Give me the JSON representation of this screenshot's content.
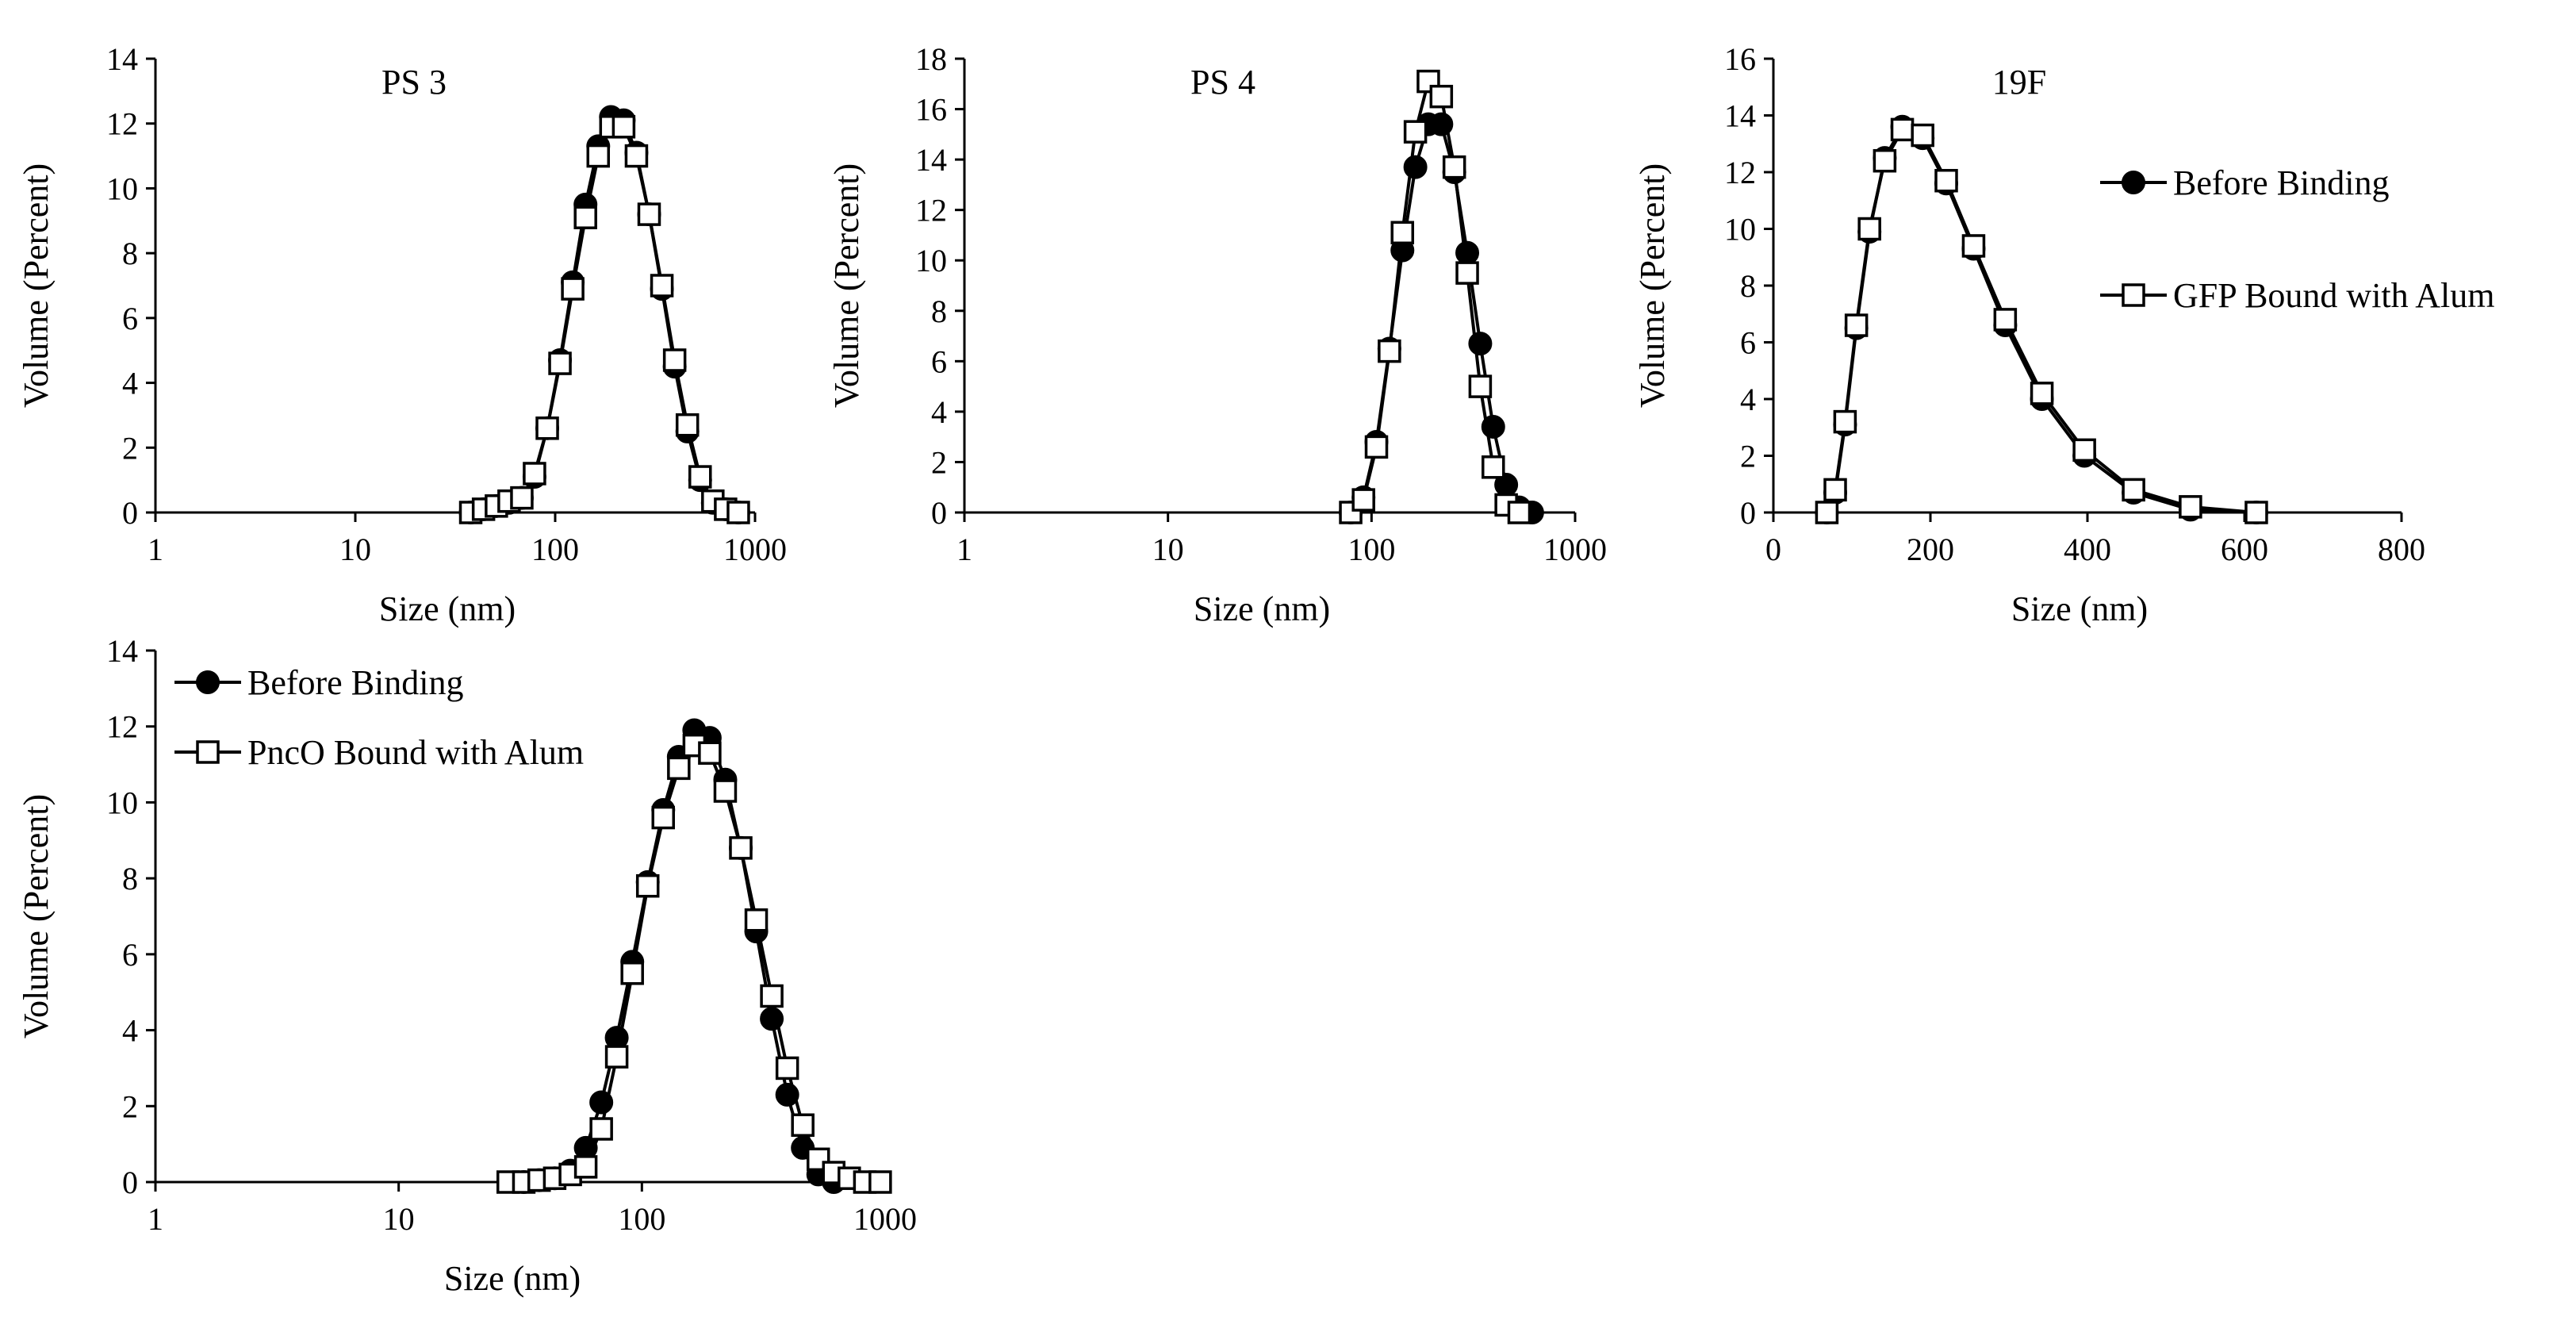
{
  "chart_data": [
    {
      "id": "ps3",
      "type": "line",
      "title": "PS 3",
      "xlabel": "Size (nm)",
      "ylabel": "Volume (Percent)",
      "xscale": "log",
      "xlim": [
        1,
        1000
      ],
      "ylim": [
        0,
        14
      ],
      "xticks": [
        1,
        10,
        100,
        1000
      ],
      "xtick_labels": [
        "1",
        "10",
        "100",
        "1000"
      ],
      "yticks": [
        0,
        2,
        4,
        6,
        8,
        10,
        12,
        14
      ],
      "ytick_labels": [
        "0",
        "2",
        "4",
        "6",
        "8",
        "10",
        "12",
        "14"
      ],
      "legend": null,
      "series": [
        {
          "name": "Before Binding",
          "marker": "filled-circle",
          "x": [
            37.8,
            43.8,
            50.8,
            58.8,
            68.1,
            78.8,
            91.3,
            105.7,
            122.4,
            141.8,
            164.2,
            190.1,
            220.2,
            255.0,
            295.3,
            342.0,
            396.1,
            458.7,
            531.2,
            615.1,
            712.4,
            825.0
          ],
          "y": [
            0.0,
            0.1,
            0.2,
            0.3,
            0.45,
            1.1,
            2.6,
            4.7,
            7.1,
            9.5,
            11.3,
            12.2,
            12.1,
            11.1,
            9.2,
            6.9,
            4.5,
            2.5,
            1.0,
            0.3,
            0.1,
            0.0
          ]
        },
        {
          "name": "GFP Bound with Alum",
          "marker": "open-square",
          "x": [
            37.8,
            43.8,
            50.8,
            58.8,
            68.1,
            78.8,
            91.3,
            105.7,
            122.4,
            141.8,
            164.2,
            190.1,
            220.2,
            255.0,
            295.3,
            342.0,
            396.1,
            458.7,
            531.2,
            615.1,
            712.4,
            825.0
          ],
          "y": [
            0.0,
            0.1,
            0.2,
            0.35,
            0.45,
            1.2,
            2.6,
            4.6,
            6.9,
            9.1,
            11.0,
            11.9,
            11.9,
            11.0,
            9.2,
            7.0,
            4.7,
            2.7,
            1.1,
            0.35,
            0.1,
            0.0
          ]
        }
      ]
    },
    {
      "id": "ps4",
      "type": "line",
      "title": "PS 4",
      "xlabel": "Size (nm)",
      "ylabel": "Volume (Percent)",
      "xscale": "log",
      "xlim": [
        1,
        1000
      ],
      "ylim": [
        0,
        18
      ],
      "xticks": [
        1,
        10,
        100,
        1000
      ],
      "xtick_labels": [
        "1",
        "10",
        "100",
        "1000"
      ],
      "yticks": [
        0,
        2,
        4,
        6,
        8,
        10,
        12,
        14,
        16,
        18
      ],
      "ytick_labels": [
        "0",
        "2",
        "4",
        "6",
        "8",
        "10",
        "12",
        "14",
        "16",
        "18"
      ],
      "legend": null,
      "series": [
        {
          "name": "Before Binding",
          "marker": "filled-circle",
          "x": [
            79,
            91.3,
            105.7,
            122.4,
            141.8,
            164.2,
            190.1,
            220.2,
            255.0,
            295.3,
            342.0,
            396.1,
            458.7,
            531.2,
            615.1
          ],
          "y": [
            0.0,
            0.6,
            2.8,
            6.5,
            10.4,
            13.7,
            15.4,
            15.4,
            13.5,
            10.3,
            6.7,
            3.4,
            1.1,
            0.2,
            0.0
          ]
        },
        {
          "name": "GFP Bound with Alum",
          "marker": "open-square",
          "x": [
            79,
            91.3,
            105.7,
            122.4,
            141.8,
            164.2,
            190.1,
            220.2,
            255.0,
            295.3,
            342.0,
            396.1,
            458.7,
            531.2
          ],
          "y": [
            0.0,
            0.5,
            2.6,
            6.4,
            11.1,
            15.1,
            17.1,
            16.5,
            13.7,
            9.5,
            5.0,
            1.8,
            0.3,
            0.0
          ]
        }
      ]
    },
    {
      "id": "f19",
      "type": "line",
      "title": "19F",
      "xlabel": "Size (nm)",
      "ylabel": "Volume (Percent)",
      "xscale": "linear",
      "xlim": [
        0,
        800
      ],
      "ylim": [
        0,
        16
      ],
      "xticks": [
        0,
        200,
        400,
        600,
        800
      ],
      "xtick_labels": [
        "0",
        "200",
        "400",
        "600",
        "800"
      ],
      "yticks": [
        0,
        2,
        4,
        6,
        8,
        10,
        12,
        14,
        16
      ],
      "ytick_labels": [
        "0",
        "2",
        "4",
        "6",
        "8",
        "10",
        "12",
        "14",
        "16"
      ],
      "legend": {
        "placement": "right",
        "entries": [
          "Before Binding",
          "GFP Bound with Alum"
        ]
      },
      "series": [
        {
          "name": "Before Binding",
          "marker": "filled-circle",
          "x": [
            68.1,
            78.8,
            91.3,
            105.7,
            122.4,
            141.8,
            164.2,
            190.1,
            220.2,
            255.0,
            295.3,
            342.0,
            396.1,
            458.7,
            531.2,
            615.1
          ],
          "y": [
            0.0,
            0.7,
            3.1,
            6.5,
            9.9,
            12.5,
            13.6,
            13.2,
            11.6,
            9.3,
            6.6,
            4.0,
            2.0,
            0.7,
            0.1,
            0.0
          ]
        },
        {
          "name": "GFP Bound with Alum",
          "marker": "open-square",
          "x": [
            68.1,
            78.8,
            91.3,
            105.7,
            122.4,
            141.8,
            164.2,
            190.1,
            220.2,
            255.0,
            295.3,
            342.0,
            396.1,
            458.7,
            531.2,
            615.1
          ],
          "y": [
            0.0,
            0.8,
            3.2,
            6.6,
            10.0,
            12.4,
            13.5,
            13.3,
            11.7,
            9.4,
            6.8,
            4.2,
            2.2,
            0.8,
            0.2,
            0.0
          ]
        }
      ]
    },
    {
      "id": "pnco",
      "type": "line",
      "title": "",
      "xlabel": "Size (nm)",
      "ylabel": "Volume (Percent)",
      "xscale": "log",
      "xlim": [
        1,
        1000
      ],
      "ylim": [
        0,
        14
      ],
      "xticks": [
        1,
        10,
        100,
        1000
      ],
      "xtick_labels": [
        "1",
        "10",
        "100",
        "1000"
      ],
      "yticks": [
        0,
        2,
        4,
        6,
        8,
        10,
        12,
        14
      ],
      "ytick_labels": [
        "0",
        "2",
        "4",
        "6",
        "8",
        "10",
        "12",
        "14"
      ],
      "legend": {
        "placement": "top-left",
        "entries": [
          "Before Binding",
          "PncO Bound with Alum"
        ]
      },
      "series": [
        {
          "name": "Before Binding",
          "marker": "filled-circle",
          "x": [
            32.7,
            37.8,
            43.8,
            50.8,
            58.8,
            68.1,
            78.8,
            91.3,
            105.7,
            122.4,
            141.8,
            164.2,
            190.1,
            220.2,
            255.0,
            295.3,
            342.0,
            396.1,
            458.7,
            531.2,
            615.1
          ],
          "y": [
            0.0,
            0.05,
            0.1,
            0.3,
            0.9,
            2.1,
            3.8,
            5.8,
            7.9,
            9.8,
            11.2,
            11.9,
            11.7,
            10.6,
            8.8,
            6.6,
            4.3,
            2.3,
            0.9,
            0.2,
            0.0
          ]
        },
        {
          "name": "PncO Bound with Alum",
          "marker": "open-square",
          "x": [
            28.2,
            32.7,
            37.8,
            43.8,
            50.8,
            58.8,
            68.1,
            78.8,
            91.3,
            105.7,
            122.4,
            141.8,
            164.2,
            190.1,
            220.2,
            255.0,
            295.3,
            342.0,
            396.1,
            458.7,
            531.2,
            615.1,
            712.4,
            825.0,
            955.0
          ],
          "y": [
            0.0,
            0.0,
            0.05,
            0.1,
            0.2,
            0.4,
            1.4,
            3.3,
            5.5,
            7.8,
            9.6,
            10.9,
            11.5,
            11.3,
            10.3,
            8.8,
            6.9,
            4.9,
            3.0,
            1.5,
            0.6,
            0.25,
            0.1,
            0.0,
            0.0
          ]
        }
      ]
    }
  ]
}
